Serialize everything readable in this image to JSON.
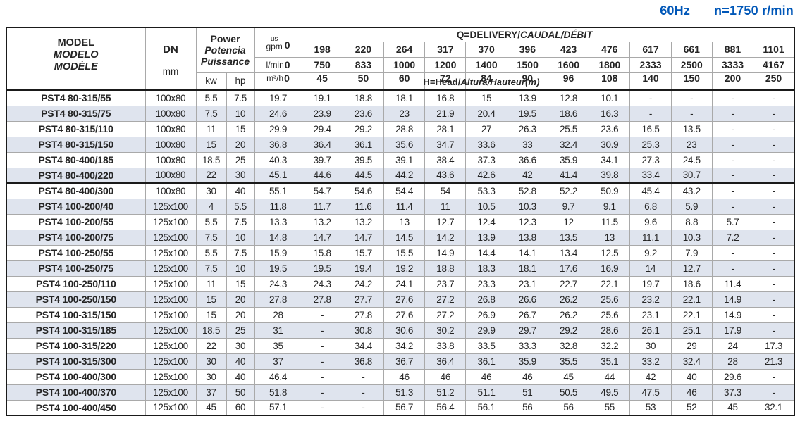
{
  "page": {
    "frequency": "60Hz",
    "speed": "n=1750 r/min"
  },
  "colors": {
    "accent_blue": "#0057b8",
    "row_stripe": "#dfe4ee",
    "grid_line": "#a9a9a9",
    "frame": "#1a1a1a"
  },
  "table": {
    "header": {
      "model_lines": [
        "MODEL",
        "MODELO",
        "MODÈLE"
      ],
      "dn_label": "DN",
      "dn_unit": "mm",
      "power_lines": [
        "Power",
        "Potencia",
        "Puissance"
      ],
      "kw_label": "kw",
      "hp_label": "hp",
      "q_title_plain": "Q=DELIVERY/",
      "q_title_italic": "CAUDAL/DÉBIT",
      "h_label_plain": "H=Head/",
      "h_label_italic": "Altura/Hauteur(m)",
      "gpm_unit_small": "us",
      "gpm_unit": "gpm",
      "lmin_unit": "l/min",
      "m3h_unit": "m³/h",
      "zero": "0",
      "gpm_values": [
        "198",
        "220",
        "264",
        "317",
        "370",
        "396",
        "423",
        "476",
        "617",
        "661",
        "881",
        "1101"
      ],
      "lmin_values": [
        "750",
        "833",
        "1000",
        "1200",
        "1400",
        "1500",
        "1600",
        "1800",
        "2333",
        "2500",
        "3333",
        "4167"
      ],
      "m3h_values": [
        "45",
        "50",
        "60",
        "72",
        "84",
        "90",
        "96",
        "108",
        "140",
        "150",
        "200",
        "250"
      ]
    },
    "rows": [
      {
        "model": "PST4 80-315/55",
        "dn": "100x80",
        "kw": "5.5",
        "hp": "7.5",
        "head": [
          "19.7",
          "19.1",
          "18.8",
          "18.1",
          "16.8",
          "15",
          "13.9",
          "12.8",
          "10.1",
          "-",
          "-",
          "-",
          "-"
        ]
      },
      {
        "model": "PST4 80-315/75",
        "dn": "100x80",
        "kw": "7.5",
        "hp": "10",
        "head": [
          "24.6",
          "23.9",
          "23.6",
          "23",
          "21.9",
          "20.4",
          "19.5",
          "18.6",
          "16.3",
          "-",
          "-",
          "-",
          "-"
        ]
      },
      {
        "model": "PST4 80-315/110",
        "dn": "100x80",
        "kw": "11",
        "hp": "15",
        "head": [
          "29.9",
          "29.4",
          "29.2",
          "28.8",
          "28.1",
          "27",
          "26.3",
          "25.5",
          "23.6",
          "16.5",
          "13.5",
          "-",
          "-"
        ]
      },
      {
        "model": "PST4 80-315/150",
        "dn": "100x80",
        "kw": "15",
        "hp": "20",
        "head": [
          "36.8",
          "36.4",
          "36.1",
          "35.6",
          "34.7",
          "33.6",
          "33",
          "32.4",
          "30.9",
          "25.3",
          "23",
          "-",
          "-"
        ]
      },
      {
        "model": "PST4 80-400/185",
        "dn": "100x80",
        "kw": "18.5",
        "hp": "25",
        "head": [
          "40.3",
          "39.7",
          "39.5",
          "39.1",
          "38.4",
          "37.3",
          "36.6",
          "35.9",
          "34.1",
          "27.3",
          "24.5",
          "-",
          "-"
        ]
      },
      {
        "model": "PST4 80-400/220",
        "dn": "100x80",
        "kw": "22",
        "hp": "30",
        "head": [
          "45.1",
          "44.6",
          "44.5",
          "44.2",
          "43.6",
          "42.6",
          "42",
          "41.4",
          "39.8",
          "33.4",
          "30.7",
          "-",
          "-"
        ]
      },
      {
        "model": "PST4 80-400/300",
        "dn": "100x80",
        "kw": "30",
        "hp": "40",
        "head": [
          "55.1",
          "54.7",
          "54.6",
          "54.4",
          "54",
          "53.3",
          "52.8",
          "52.2",
          "50.9",
          "45.4",
          "43.2",
          "-",
          "-"
        ]
      },
      {
        "model": "PST4 100-200/40",
        "dn": "125x100",
        "kw": "4",
        "hp": "5.5",
        "head": [
          "11.8",
          "11.7",
          "11.6",
          "11.4",
          "11",
          "10.5",
          "10.3",
          "9.7",
          "9.1",
          "6.8",
          "5.9",
          "-",
          "-"
        ]
      },
      {
        "model": "PST4 100-200/55",
        "dn": "125x100",
        "kw": "5.5",
        "hp": "7.5",
        "head": [
          "13.3",
          "13.2",
          "13.2",
          "13",
          "12.7",
          "12.4",
          "12.3",
          "12",
          "11.5",
          "9.6",
          "8.8",
          "5.7",
          "-"
        ]
      },
      {
        "model": "PST4 100-200/75",
        "dn": "125x100",
        "kw": "7.5",
        "hp": "10",
        "head": [
          "14.8",
          "14.7",
          "14.7",
          "14.5",
          "14.2",
          "13.9",
          "13.8",
          "13.5",
          "13",
          "11.1",
          "10.3",
          "7.2",
          "-"
        ]
      },
      {
        "model": "PST4 100-250/55",
        "dn": "125x100",
        "kw": "5.5",
        "hp": "7.5",
        "head": [
          "15.9",
          "15.8",
          "15.7",
          "15.5",
          "14.9",
          "14.4",
          "14.1",
          "13.4",
          "12.5",
          "9.2",
          "7.9",
          "-",
          "-"
        ]
      },
      {
        "model": "PST4 100-250/75",
        "dn": "125x100",
        "kw": "7.5",
        "hp": "10",
        "head": [
          "19.5",
          "19.5",
          "19.4",
          "19.2",
          "18.8",
          "18.3",
          "18.1",
          "17.6",
          "16.9",
          "14",
          "12.7",
          "-",
          "-"
        ]
      },
      {
        "model": "PST4 100-250/110",
        "dn": "125x100",
        "kw": "11",
        "hp": "15",
        "head": [
          "24.3",
          "24.3",
          "24.2",
          "24.1",
          "23.7",
          "23.3",
          "23.1",
          "22.7",
          "22.1",
          "19.7",
          "18.6",
          "11.4",
          "-"
        ]
      },
      {
        "model": "PST4 100-250/150",
        "dn": "125x100",
        "kw": "15",
        "hp": "20",
        "head": [
          "27.8",
          "27.8",
          "27.7",
          "27.6",
          "27.2",
          "26.8",
          "26.6",
          "26.2",
          "25.6",
          "23.2",
          "22.1",
          "14.9",
          "-"
        ]
      },
      {
        "model": "PST4 100-315/150",
        "dn": "125x100",
        "kw": "15",
        "hp": "20",
        "head": [
          "28",
          "-",
          "27.8",
          "27.6",
          "27.2",
          "26.9",
          "26.7",
          "26.2",
          "25.6",
          "23.1",
          "22.1",
          "14.9",
          "-"
        ]
      },
      {
        "model": "PST4 100-315/185",
        "dn": "125x100",
        "kw": "18.5",
        "hp": "25",
        "head": [
          "31",
          "-",
          "30.8",
          "30.6",
          "30.2",
          "29.9",
          "29.7",
          "29.2",
          "28.6",
          "26.1",
          "25.1",
          "17.9",
          "-"
        ]
      },
      {
        "model": "PST4 100-315/220",
        "dn": "125x100",
        "kw": "22",
        "hp": "30",
        "head": [
          "35",
          "-",
          "34.4",
          "34.2",
          "33.8",
          "33.5",
          "33.3",
          "32.8",
          "32.2",
          "30",
          "29",
          "24",
          "17.3"
        ]
      },
      {
        "model": "PST4 100-315/300",
        "dn": "125x100",
        "kw": "30",
        "hp": "40",
        "head": [
          "37",
          "-",
          "36.8",
          "36.7",
          "36.4",
          "36.1",
          "35.9",
          "35.5",
          "35.1",
          "33.2",
          "32.4",
          "28",
          "21.3"
        ]
      },
      {
        "model": "PST4 100-400/300",
        "dn": "125x100",
        "kw": "30",
        "hp": "40",
        "head": [
          "46.4",
          "-",
          "-",
          "46",
          "46",
          "46",
          "46",
          "45",
          "44",
          "42",
          "40",
          "29.6",
          "-"
        ]
      },
      {
        "model": "PST4 100-400/370",
        "dn": "125x100",
        "kw": "37",
        "hp": "50",
        "head": [
          "51.8",
          "-",
          "-",
          "51.3",
          "51.2",
          "51.1",
          "51",
          "50.5",
          "49.5",
          "47.5",
          "46",
          "37.3",
          "-"
        ]
      },
      {
        "model": "PST4 100-400/450",
        "dn": "125x100",
        "kw": "45",
        "hp": "60",
        "head": [
          "57.1",
          "-",
          "-",
          "56.7",
          "56.4",
          "56.1",
          "56",
          "56",
          "55",
          "53",
          "52",
          "45",
          "32.1"
        ]
      }
    ]
  }
}
